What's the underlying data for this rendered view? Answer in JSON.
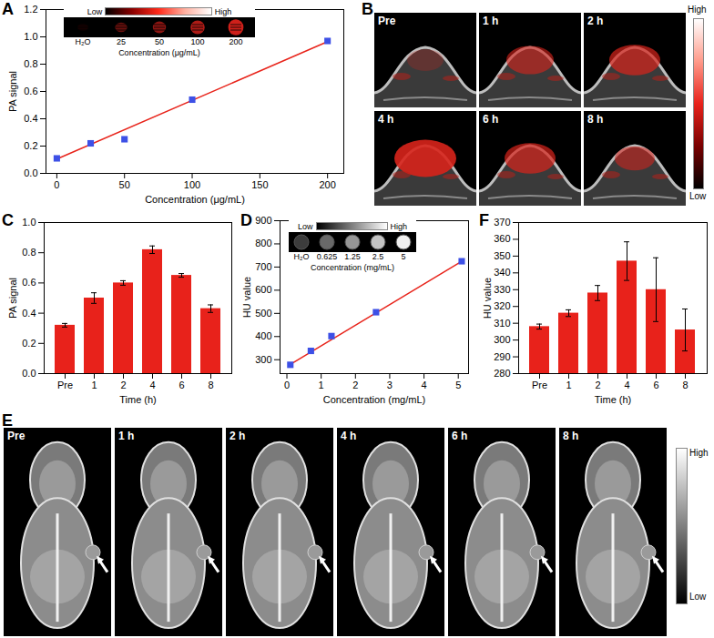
{
  "chart_data": [
    {
      "title": "A",
      "type": "scatter",
      "xlabel": "Concentration (μg/mL)",
      "ylabel": "PA signal",
      "series": [
        {
          "type": "scatter",
          "marker": "square",
          "color": "#3d50e6",
          "x": [
            0,
            25,
            50,
            100,
            200
          ],
          "values": [
            0.11,
            0.22,
            0.25,
            0.54,
            0.97
          ]
        },
        {
          "type": "line",
          "line_style": "solid",
          "color": "#e8241b",
          "x": [
            0,
            200
          ],
          "values": [
            0.105,
            0.965
          ]
        }
      ],
      "xlim": [
        -8,
        212
      ],
      "xticks": [
        0,
        50,
        100,
        150,
        200
      ],
      "ylim": [
        0,
        1.2
      ],
      "yticks": [
        {
          "value": 0,
          "label": "0.0"
        },
        {
          "value": 0.2,
          "label": "0.2"
        },
        {
          "value": 0.4,
          "label": "0.4"
        },
        {
          "value": 0.6,
          "label": "0.6"
        },
        {
          "value": 0.8,
          "label": "0.8"
        },
        {
          "value": 1,
          "label": "1.0"
        },
        {
          "value": 1.2,
          "label": "1.2"
        }
      ],
      "inset": {
        "scale": [
          "Low",
          "High"
        ],
        "labels": [
          "H₂O",
          "25",
          "50",
          "100",
          "200"
        ],
        "xlabel": "Concentration (μg/mL)"
      }
    },
    {
      "title": "C",
      "type": "bar",
      "xlabel": "Time (h)",
      "ylabel": "PA signal",
      "categories": [
        "Pre",
        "1",
        "2",
        "4",
        "6",
        "8"
      ],
      "values": [
        0.32,
        0.5,
        0.6,
        0.82,
        0.65,
        0.43
      ],
      "errors": [
        0.012,
        0.035,
        0.015,
        0.025,
        0.012,
        0.025
      ],
      "color": "#e8221b",
      "ylim": [
        0,
        1
      ],
      "yticks": [
        {
          "value": 0,
          "label": "0.0"
        },
        {
          "value": 0.2,
          "label": "0.2"
        },
        {
          "value": 0.4,
          "label": "0.4"
        },
        {
          "value": 0.6,
          "label": "0.6"
        },
        {
          "value": 0.8,
          "label": "0.8"
        },
        {
          "value": 1,
          "label": "1.0"
        }
      ]
    },
    {
      "title": "D",
      "type": "scatter",
      "xlabel": "Concentration (mg/mL)",
      "ylabel": "HU value",
      "series": [
        {
          "type": "scatter",
          "marker": "square",
          "color": "#3d50e6",
          "x": [
            0.1,
            0.7,
            1.3,
            2.6,
            5.1
          ],
          "values": [
            278,
            338,
            402,
            505,
            725
          ]
        },
        {
          "type": "line",
          "line_style": "solid",
          "color": "#e8241b",
          "x": [
            0.1,
            5.1
          ],
          "values": [
            280,
            725
          ]
        }
      ],
      "xlim": [
        -0.2,
        5.3
      ],
      "xticks": [
        0,
        1,
        2,
        3,
        4,
        5
      ],
      "ylim": [
        240,
        900
      ],
      "yticks": [
        300,
        400,
        500,
        600,
        700,
        800,
        900
      ],
      "inset": {
        "scale": [
          "Low",
          "High"
        ],
        "labels": [
          "H₂O",
          "0.625",
          "1.25",
          "2.5",
          "5"
        ],
        "xlabel": "Concentration (mg/mL)"
      }
    },
    {
      "title": "F",
      "type": "bar",
      "xlabel": "Time (h)",
      "ylabel": "HU value",
      "categories": [
        "Pre",
        "1",
        "2",
        "4",
        "6",
        "8"
      ],
      "values": [
        308,
        316,
        328,
        347,
        330,
        306
      ],
      "errors": [
        1.5,
        2,
        4.5,
        11.5,
        19,
        12.5
      ],
      "color": "#e8221b",
      "ylim": [
        280,
        370
      ],
      "yticks": [
        280,
        290,
        300,
        310,
        320,
        330,
        340,
        350,
        360,
        370
      ]
    }
  ],
  "image_panels": [
    {
      "title": "B",
      "frames": [
        "Pre",
        "1 h",
        "2 h",
        "4 h",
        "6 h",
        "8 h"
      ],
      "colorbar": [
        "High",
        "Low"
      ]
    },
    {
      "title": "E",
      "frames": [
        "Pre",
        "1 h",
        "2 h",
        "4 h",
        "6 h",
        "8 h"
      ],
      "colorbar": [
        "High",
        "Low"
      ]
    }
  ]
}
